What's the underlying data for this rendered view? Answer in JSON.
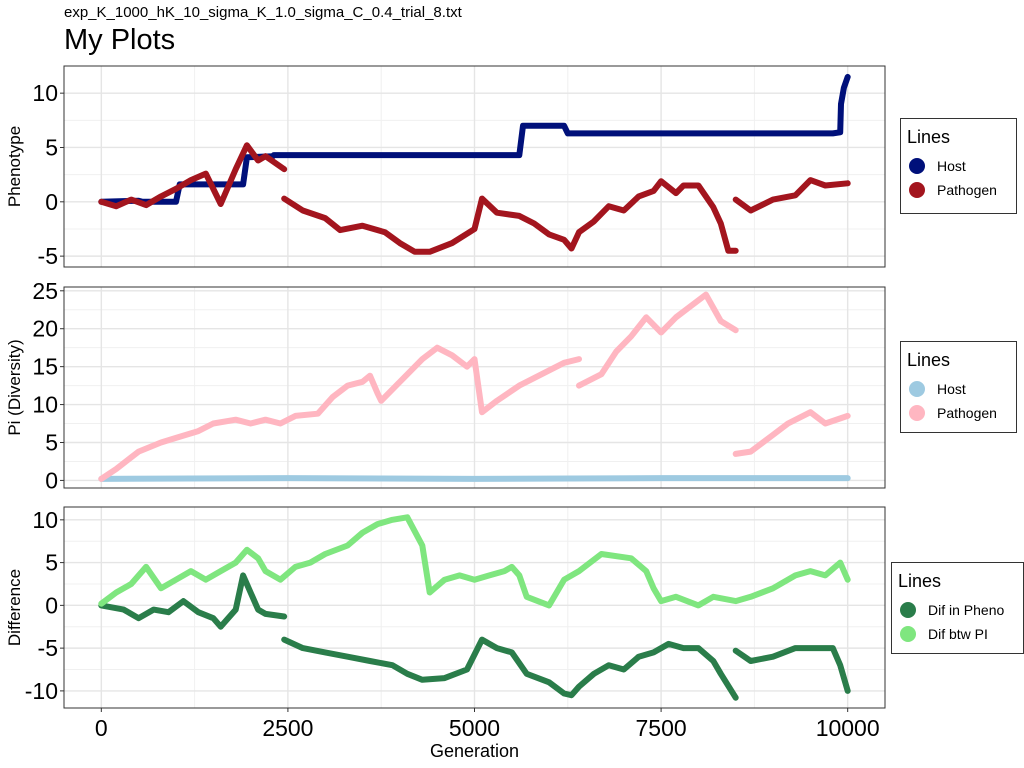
{
  "header": {
    "subtitle": "exp_K_1000_hK_10_sigma_K_1.0_sigma_C_0.4_trial_8.txt",
    "title": "My Plots"
  },
  "xaxis": {
    "label": "Generation",
    "range": [
      -500,
      10500
    ],
    "ticks": [
      0,
      2500,
      5000,
      7500,
      10000
    ]
  },
  "legends": [
    {
      "title": "Lines",
      "items": [
        {
          "label": "Host",
          "color": "#00107a"
        },
        {
          "label": "Pathogen",
          "color": "#a3151e"
        }
      ]
    },
    {
      "title": "Lines",
      "items": [
        {
          "label": "Host",
          "color": "#9ecae1"
        },
        {
          "label": "Pathogen",
          "color": "#ffb6c1"
        }
      ]
    },
    {
      "title": "Lines",
      "items": [
        {
          "label": "Dif in Pheno",
          "color": "#2a7d4a"
        },
        {
          "label": "Dif btw PI",
          "color": "#7fe67f"
        }
      ]
    }
  ],
  "chart_data": [
    {
      "type": "scatter",
      "ylabel": "Phenotype",
      "ylim": [
        -6,
        12.5
      ],
      "yticks": [
        -5,
        0,
        5,
        10
      ],
      "grid": true,
      "legend_position": "right",
      "series": [
        {
          "name": "Host",
          "color": "#00107a",
          "points": [
            [
              0,
              0
            ],
            [
              500,
              0.1
            ],
            [
              550,
              0
            ],
            [
              1000,
              0
            ],
            [
              1050,
              1.6
            ],
            [
              1900,
              1.6
            ],
            [
              1950,
              4.1
            ],
            [
              2300,
              4.2
            ],
            [
              2310,
              4.3
            ],
            [
              5000,
              4.3
            ],
            [
              5600,
              4.3
            ],
            [
              5650,
              7
            ],
            [
              6200,
              7
            ],
            [
              6250,
              6.3
            ],
            [
              8000,
              6.3
            ],
            [
              9800,
              6.3
            ],
            [
              9900,
              6.4
            ],
            [
              9910,
              9
            ],
            [
              9950,
              10.5
            ],
            [
              10000,
              11.5
            ]
          ]
        },
        {
          "name": "Pathogen",
          "color": "#a3151e",
          "points": [
            [
              0,
              0
            ],
            [
              200,
              -0.4
            ],
            [
              400,
              0.2
            ],
            [
              600,
              -0.3
            ],
            [
              800,
              0.5
            ],
            [
              1000,
              1.2
            ],
            [
              1200,
              2
            ],
            [
              1400,
              2.6
            ],
            [
              1600,
              -0.2
            ],
            [
              1800,
              3
            ],
            [
              1950,
              5.2
            ],
            [
              2100,
              3.8
            ],
            [
              2200,
              4.2
            ],
            [
              2450,
              3
            ],
            [
              2450,
              0.3
            ],
            [
              2700,
              -0.8
            ],
            [
              3000,
              -1.5
            ],
            [
              3200,
              -2.6
            ],
            [
              3500,
              -2.2
            ],
            [
              3800,
              -2.8
            ],
            [
              4000,
              -3.8
            ],
            [
              4200,
              -4.6
            ],
            [
              4400,
              -4.6
            ],
            [
              4700,
              -3.8
            ],
            [
              5000,
              -2.5
            ],
            [
              5100,
              0.3
            ],
            [
              5300,
              -1
            ],
            [
              5600,
              -1.3
            ],
            [
              5800,
              -2
            ],
            [
              6000,
              -3
            ],
            [
              6200,
              -3.5
            ],
            [
              6300,
              -4.3
            ],
            [
              6400,
              -2.8
            ],
            [
              6600,
              -1.8
            ],
            [
              6800,
              -0.4
            ],
            [
              7000,
              -0.8
            ],
            [
              7200,
              0.5
            ],
            [
              7400,
              1
            ],
            [
              7500,
              1.9
            ],
            [
              7700,
              0.8
            ],
            [
              7800,
              1.5
            ],
            [
              8000,
              1.5
            ],
            [
              8200,
              -0.5
            ],
            [
              8300,
              -2
            ],
            [
              8400,
              -4.5
            ],
            [
              8500,
              -4.5
            ],
            [
              8500,
              0.2
            ],
            [
              8700,
              -0.8
            ],
            [
              9000,
              0.2
            ],
            [
              9300,
              0.6
            ],
            [
              9500,
              2
            ],
            [
              9700,
              1.5
            ],
            [
              10000,
              1.7
            ]
          ]
        }
      ]
    },
    {
      "type": "scatter",
      "ylabel": "Pi (Diversity)",
      "ylim": [
        -1,
        25.5
      ],
      "yticks": [
        0,
        5,
        10,
        15,
        20,
        25
      ],
      "grid": true,
      "legend_position": "right",
      "series": [
        {
          "name": "Host",
          "color": "#9ecae1",
          "points": [
            [
              0,
              0.2
            ],
            [
              2500,
              0.3
            ],
            [
              5000,
              0.2
            ],
            [
              7500,
              0.3
            ],
            [
              10000,
              0.3
            ]
          ]
        },
        {
          "name": "Pathogen",
          "color": "#ffb6c1",
          "points": [
            [
              0,
              0.2
            ],
            [
              200,
              1.5
            ],
            [
              500,
              3.8
            ],
            [
              800,
              5
            ],
            [
              1000,
              5.6
            ],
            [
              1300,
              6.5
            ],
            [
              1500,
              7.5
            ],
            [
              1800,
              8
            ],
            [
              2000,
              7.5
            ],
            [
              2200,
              8
            ],
            [
              2400,
              7.5
            ],
            [
              2600,
              8.5
            ],
            [
              2900,
              8.8
            ],
            [
              3100,
              11
            ],
            [
              3300,
              12.5
            ],
            [
              3500,
              13
            ],
            [
              3600,
              13.8
            ],
            [
              3700,
              11.5
            ],
            [
              3750,
              10.5
            ],
            [
              4000,
              13
            ],
            [
              4300,
              16
            ],
            [
              4500,
              17.5
            ],
            [
              4700,
              16.5
            ],
            [
              4900,
              15
            ],
            [
              5000,
              16
            ],
            [
              5100,
              9
            ],
            [
              5300,
              10.5
            ],
            [
              5600,
              12.5
            ],
            [
              5900,
              14
            ],
            [
              6200,
              15.5
            ],
            [
              6400,
              16
            ],
            [
              6400,
              12.5
            ],
            [
              6700,
              14
            ],
            [
              6900,
              17
            ],
            [
              7100,
              19
            ],
            [
              7300,
              21.5
            ],
            [
              7500,
              19.5
            ],
            [
              7700,
              21.5
            ],
            [
              7900,
              23
            ],
            [
              8100,
              24.5
            ],
            [
              8300,
              21
            ],
            [
              8500,
              19.8
            ],
            [
              8500,
              3.5
            ],
            [
              8700,
              3.8
            ],
            [
              9000,
              6
            ],
            [
              9200,
              7.5
            ],
            [
              9500,
              9
            ],
            [
              9700,
              7.5
            ],
            [
              10000,
              8.5
            ]
          ]
        }
      ]
    },
    {
      "type": "scatter",
      "ylabel": "Difference",
      "ylim": [
        -12,
        11.5
      ],
      "yticks": [
        -10,
        -5,
        0,
        5,
        10
      ],
      "grid": true,
      "legend_position": "right",
      "series": [
        {
          "name": "Dif in Pheno",
          "color": "#2a7d4a",
          "points": [
            [
              0,
              0
            ],
            [
              300,
              -0.5
            ],
            [
              500,
              -1.5
            ],
            [
              700,
              -0.5
            ],
            [
              900,
              -0.8
            ],
            [
              1100,
              0.5
            ],
            [
              1300,
              -0.8
            ],
            [
              1500,
              -1.5
            ],
            [
              1600,
              -2.5
            ],
            [
              1800,
              -0.5
            ],
            [
              1900,
              3.5
            ],
            [
              2100,
              -0.5
            ],
            [
              2200,
              -1
            ],
            [
              2450,
              -1.3
            ],
            [
              2450,
              -4
            ],
            [
              2700,
              -5
            ],
            [
              3000,
              -5.5
            ],
            [
              3300,
              -6
            ],
            [
              3600,
              -6.5
            ],
            [
              3900,
              -7
            ],
            [
              4100,
              -8
            ],
            [
              4300,
              -8.7
            ],
            [
              4600,
              -8.5
            ],
            [
              4900,
              -7.5
            ],
            [
              5100,
              -4
            ],
            [
              5300,
              -5
            ],
            [
              5500,
              -5.5
            ],
            [
              5700,
              -8
            ],
            [
              6000,
              -9
            ],
            [
              6200,
              -10.3
            ],
            [
              6300,
              -10.5
            ],
            [
              6400,
              -9.5
            ],
            [
              6600,
              -8
            ],
            [
              6800,
              -7
            ],
            [
              7000,
              -7.5
            ],
            [
              7200,
              -6
            ],
            [
              7400,
              -5.5
            ],
            [
              7600,
              -4.5
            ],
            [
              7800,
              -5
            ],
            [
              8000,
              -5
            ],
            [
              8200,
              -6.5
            ],
            [
              8300,
              -8
            ],
            [
              8500,
              -10.8
            ],
            [
              8500,
              -5.3
            ],
            [
              8700,
              -6.5
            ],
            [
              9000,
              -6
            ],
            [
              9300,
              -5
            ],
            [
              9600,
              -5
            ],
            [
              9800,
              -5
            ],
            [
              9900,
              -7
            ],
            [
              10000,
              -10
            ]
          ]
        },
        {
          "name": "Dif btw PI",
          "color": "#7fe67f",
          "points": [
            [
              0,
              0.2
            ],
            [
              200,
              1.5
            ],
            [
              400,
              2.5
            ],
            [
              600,
              4.5
            ],
            [
              800,
              2
            ],
            [
              1000,
              3
            ],
            [
              1200,
              4
            ],
            [
              1400,
              3
            ],
            [
              1600,
              4
            ],
            [
              1800,
              5
            ],
            [
              1950,
              6.5
            ],
            [
              2100,
              5.5
            ],
            [
              2200,
              4
            ],
            [
              2400,
              3
            ],
            [
              2600,
              4.5
            ],
            [
              2800,
              5
            ],
            [
              3000,
              6
            ],
            [
              3300,
              7
            ],
            [
              3500,
              8.5
            ],
            [
              3700,
              9.5
            ],
            [
              3900,
              10
            ],
            [
              4100,
              10.3
            ],
            [
              4300,
              7
            ],
            [
              4400,
              1.5
            ],
            [
              4600,
              3
            ],
            [
              4800,
              3.5
            ],
            [
              5000,
              3
            ],
            [
              5200,
              3.5
            ],
            [
              5400,
              4
            ],
            [
              5500,
              4.5
            ],
            [
              5600,
              3.5
            ],
            [
              5700,
              1
            ],
            [
              6000,
              0
            ],
            [
              6200,
              3
            ],
            [
              6400,
              4
            ],
            [
              6700,
              6
            ],
            [
              7100,
              5.5
            ],
            [
              7300,
              4
            ],
            [
              7400,
              2
            ],
            [
              7500,
              0.5
            ],
            [
              7700,
              1
            ],
            [
              8000,
              0
            ],
            [
              8200,
              1
            ],
            [
              8500,
              0.5
            ],
            [
              8700,
              1
            ],
            [
              9000,
              2
            ],
            [
              9300,
              3.5
            ],
            [
              9500,
              4
            ],
            [
              9700,
              3.5
            ],
            [
              9900,
              5
            ],
            [
              10000,
              3
            ]
          ]
        }
      ]
    }
  ]
}
